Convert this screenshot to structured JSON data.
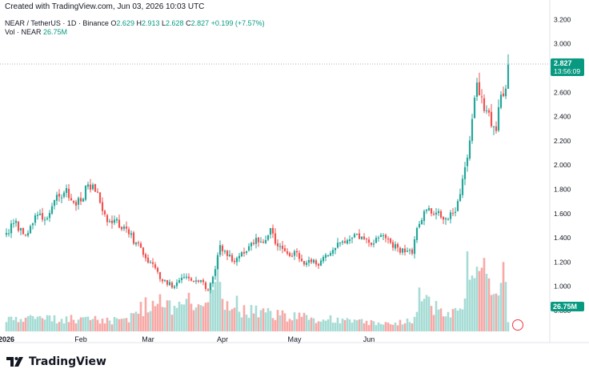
{
  "created_text": "Created with TradingView.com, Jun 03, 2026 10:03 UTC",
  "legend": {
    "symbol": "NEAR / TetherUS · 1D · Binance",
    "o_label": "O",
    "o_value": "2.629",
    "h_label": "H",
    "h_value": "2.913",
    "l_label": "L",
    "l_value": "2.628",
    "c_label": "C",
    "c_value": "2.827",
    "change": "+0.199 (+7.57%)",
    "vol_label": "Vol · NEAR",
    "vol_value": "26.75M"
  },
  "price_tag": {
    "price": "2.827",
    "countdown": "13:56:09"
  },
  "volume_tag": "26.75M",
  "brand": "TradingView",
  "colors": {
    "up": "#26a69a",
    "down": "#ef5350",
    "up_volume": "#a6dcd5",
    "down_volume": "#f7a9a7",
    "tag": "#089981"
  },
  "chart_data": {
    "type": "candlestick",
    "symbol": "NEARUSDT",
    "timeframe": "1D",
    "y_ticks": [
      "3.200",
      "3.000",
      "2.800",
      "2.600",
      "2.400",
      "2.200",
      "2.000",
      "1.800",
      "1.600",
      "1.400",
      "1.200",
      "1.000",
      "0.800"
    ],
    "x_ticks": [
      {
        "label": "2026",
        "date": "2026-01-01"
      },
      {
        "label": "Feb",
        "date": "2026-02-01"
      },
      {
        "label": "Mar",
        "date": "2026-03-01"
      },
      {
        "label": "Apr",
        "date": "2026-04-01"
      },
      {
        "label": "May",
        "date": "2026-05-01"
      },
      {
        "label": "Jun",
        "date": "2026-06-01"
      }
    ],
    "ylim": [
      0.8,
      3.2
    ],
    "last_price": 2.827,
    "grid": false,
    "close_anchors": [
      [
        0,
        1.44
      ],
      [
        3,
        1.52
      ],
      [
        6,
        1.48
      ],
      [
        9,
        1.44
      ],
      [
        13,
        1.59
      ],
      [
        16,
        1.55
      ],
      [
        19,
        1.66
      ],
      [
        22,
        1.74
      ],
      [
        25,
        1.81
      ],
      [
        28,
        1.69
      ],
      [
        31,
        1.7
      ],
      [
        34,
        1.84
      ],
      [
        37,
        1.78
      ],
      [
        39,
        1.69
      ],
      [
        42,
        1.53
      ],
      [
        45,
        1.55
      ],
      [
        48,
        1.47
      ],
      [
        51,
        1.43
      ],
      [
        54,
        1.36
      ],
      [
        57,
        1.26
      ],
      [
        60,
        1.2
      ],
      [
        63,
        1.12
      ],
      [
        64,
        1.06
      ],
      [
        66,
        1.05
      ],
      [
        69,
        0.99
      ],
      [
        72,
        1.05
      ],
      [
        75,
        1.08
      ],
      [
        78,
        1.04
      ],
      [
        81,
        1.05
      ],
      [
        84,
        0.97
      ],
      [
        86,
        1.08
      ],
      [
        89,
        1.34
      ],
      [
        92,
        1.25
      ],
      [
        95,
        1.2
      ],
      [
        98,
        1.28
      ],
      [
        101,
        1.33
      ],
      [
        104,
        1.4
      ],
      [
        107,
        1.36
      ],
      [
        110,
        1.48
      ],
      [
        113,
        1.33
      ],
      [
        116,
        1.29
      ],
      [
        119,
        1.25
      ],
      [
        121,
        1.28
      ],
      [
        124,
        1.18
      ],
      [
        127,
        1.2
      ],
      [
        130,
        1.17
      ],
      [
        133,
        1.26
      ],
      [
        136,
        1.3
      ],
      [
        139,
        1.36
      ],
      [
        142,
        1.38
      ],
      [
        145,
        1.43
      ],
      [
        148,
        1.41
      ],
      [
        151,
        1.36
      ],
      [
        154,
        1.4
      ],
      [
        157,
        1.42
      ],
      [
        160,
        1.36
      ],
      [
        163,
        1.32
      ],
      [
        166,
        1.28
      ],
      [
        169,
        1.27
      ],
      [
        171,
        1.48
      ],
      [
        174,
        1.62
      ],
      [
        177,
        1.6
      ],
      [
        180,
        1.62
      ],
      [
        183,
        1.56
      ],
      [
        186,
        1.6
      ],
      [
        189,
        1.76
      ],
      [
        192,
        2.06
      ],
      [
        194,
        2.38
      ],
      [
        196,
        2.68
      ],
      [
        198,
        2.56
      ],
      [
        200,
        2.45
      ],
      [
        202,
        2.32
      ],
      [
        204,
        2.28
      ],
      [
        206,
        2.58
      ],
      [
        208,
        2.63
      ],
      [
        209,
        2.827
      ]
    ],
    "volume_anchors": [
      [
        0,
        0.3
      ],
      [
        30,
        0.35
      ],
      [
        50,
        0.28
      ],
      [
        63,
        0.95
      ],
      [
        70,
        0.5
      ],
      [
        88,
        1.45
      ],
      [
        90,
        0.95
      ],
      [
        100,
        0.55
      ],
      [
        120,
        0.38
      ],
      [
        140,
        0.3
      ],
      [
        160,
        0.18
      ],
      [
        170,
        0.3
      ],
      [
        172,
        0.9
      ],
      [
        180,
        0.55
      ],
      [
        185,
        0.55
      ],
      [
        190,
        0.7
      ],
      [
        191,
        1.0
      ],
      [
        192,
        2.3
      ],
      [
        193,
        1.45
      ],
      [
        196,
        1.55
      ],
      [
        199,
        1.8
      ],
      [
        202,
        1.15
      ],
      [
        205,
        1.05
      ],
      [
        207,
        2.0
      ],
      [
        208,
        1.55
      ],
      [
        209,
        0.25
      ]
    ]
  }
}
